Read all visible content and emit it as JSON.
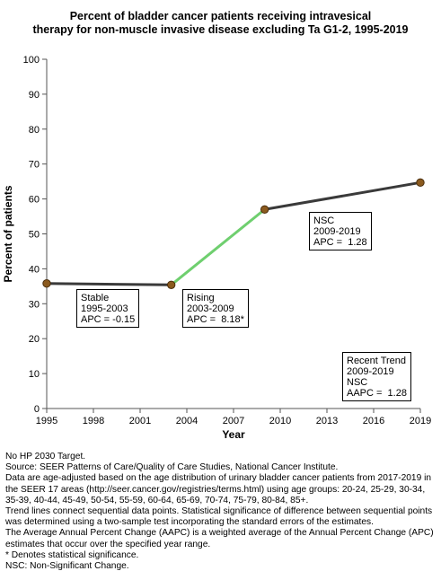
{
  "chart_data": {
    "type": "line",
    "title_lines": [
      "Percent of bladder cancer patients receiving intravesical",
      "therapy for non-muscle invasive disease excluding Ta G1-2, 1995-2019"
    ],
    "xlabel": "Year",
    "ylabel": "Percent of patients",
    "xlim": [
      1995,
      2019
    ],
    "ylim": [
      0,
      100
    ],
    "x_ticks": [
      1995,
      1998,
      2001,
      2004,
      2007,
      2010,
      2013,
      2016,
      2019
    ],
    "y_ticks": [
      0,
      10,
      20,
      30,
      40,
      50,
      60,
      70,
      80,
      90,
      100
    ],
    "grid": false,
    "points": [
      {
        "x": 1995,
        "y": 35.8
      },
      {
        "x": 2003,
        "y": 35.4
      },
      {
        "x": 2009,
        "y": 57.0
      },
      {
        "x": 2019,
        "y": 64.7
      }
    ],
    "segments": [
      {
        "from": 0,
        "to": 1,
        "color": "#3a3a3a",
        "annotation": {
          "lines": [
            "Stable",
            "1995-2003",
            "APC = -0.15"
          ]
        }
      },
      {
        "from": 1,
        "to": 2,
        "color": "#6fcf6f",
        "annotation": {
          "lines": [
            "Rising",
            "2003-2009",
            "APC =  8.18*"
          ]
        }
      },
      {
        "from": 2,
        "to": 3,
        "color": "#3a3a3a",
        "annotation": {
          "lines": [
            "NSC",
            "2009-2019",
            "APC =  1.28"
          ]
        }
      }
    ],
    "recent_trend": {
      "lines": [
        "Recent Trend",
        "2009-2019",
        "NSC",
        "AAPC =  1.28"
      ]
    },
    "point_color": "#8b5a1e",
    "axis_color": "#555555"
  },
  "footnotes": [
    "No HP 2030 Target.",
    "Source: SEER Patterns of Care/Quality of Care Studies, National Cancer Institute.",
    "Data are age-adjusted based on the age distribution of urinary bladder cancer patients from 2017-2019 in the SEER 17 areas (http://seer.cancer.gov/registries/terms.html) using age groups: 20-24, 25-29, 30-34, 35-39, 40-44, 45-49, 50-54, 55-59, 60-64, 65-69, 70-74, 75-79, 80-84, 85+.",
    "Trend lines connect sequential data points. Statistical significance of difference between sequential points was determined using a two-sample test incorporating the standard errors of the estimates.",
    "The Average Annual Percent Change (AAPC) is a weighted average of the Annual Percent Change (APC) estimates that occur over the specified year range.",
    "* Denotes statistical significance.",
    "NSC: Non-Significant Change."
  ]
}
